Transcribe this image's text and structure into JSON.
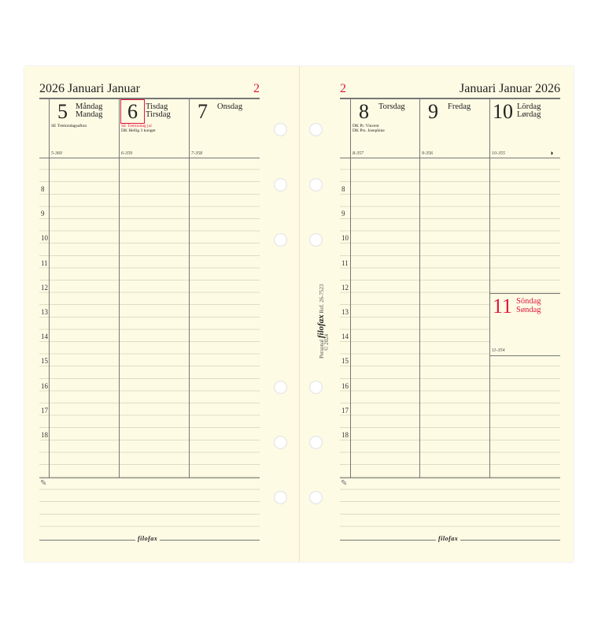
{
  "left_page": {
    "title": "2026 Januari Januar",
    "week": "2",
    "days": [
      {
        "num": "5",
        "name1": "Måndag",
        "name2": "Mandag",
        "notes": [
          {
            "text": "SE  Trettondagsafton",
            "red": false
          }
        ],
        "daycount": "5-360",
        "today": false
      },
      {
        "num": "6",
        "name1": "Tisdag",
        "name2": "Tirsdag",
        "notes": [
          {
            "text": "SE  Trettondag jul",
            "red": true
          },
          {
            "text": "DK  Hellig 3 konger",
            "red": false
          }
        ],
        "daycount": "6-359",
        "today": true
      },
      {
        "num": "7",
        "name1": "Onsdag",
        "name2": "",
        "notes": [],
        "daycount": "7-358",
        "today": false
      }
    ]
  },
  "right_page": {
    "title": "Januari Januar 2026",
    "week": "2",
    "days": [
      {
        "num": "8",
        "name1": "Torsdag",
        "name2": "",
        "notes": [
          {
            "text": "DK  Pr. Vincent",
            "red": false
          },
          {
            "text": "DK  Prs. Josephine",
            "red": false
          }
        ],
        "daycount": "8-357"
      },
      {
        "num": "9",
        "name1": "Fredag",
        "name2": "",
        "notes": [],
        "daycount": "9-356"
      },
      {
        "num": "10",
        "name1": "Lördag",
        "name2": "Lørdag",
        "notes": [],
        "daycount": "10-355",
        "icon": "half-moon-icon"
      }
    ],
    "sunday": {
      "num": "11",
      "name1": "Söndag",
      "name2": "Søndag",
      "daycount": "11-354",
      "color": "#e0193c"
    }
  },
  "hours": [
    "8",
    "9",
    "10",
    "11",
    "12",
    "13",
    "14",
    "15",
    "16",
    "17",
    "18"
  ],
  "footer_logo": "filofax",
  "spine": {
    "size": "Personal",
    "logo": "filofax",
    "ref": "Ref. 26-7523",
    "copyright": "© 2024"
  },
  "accent": "#e0193c"
}
